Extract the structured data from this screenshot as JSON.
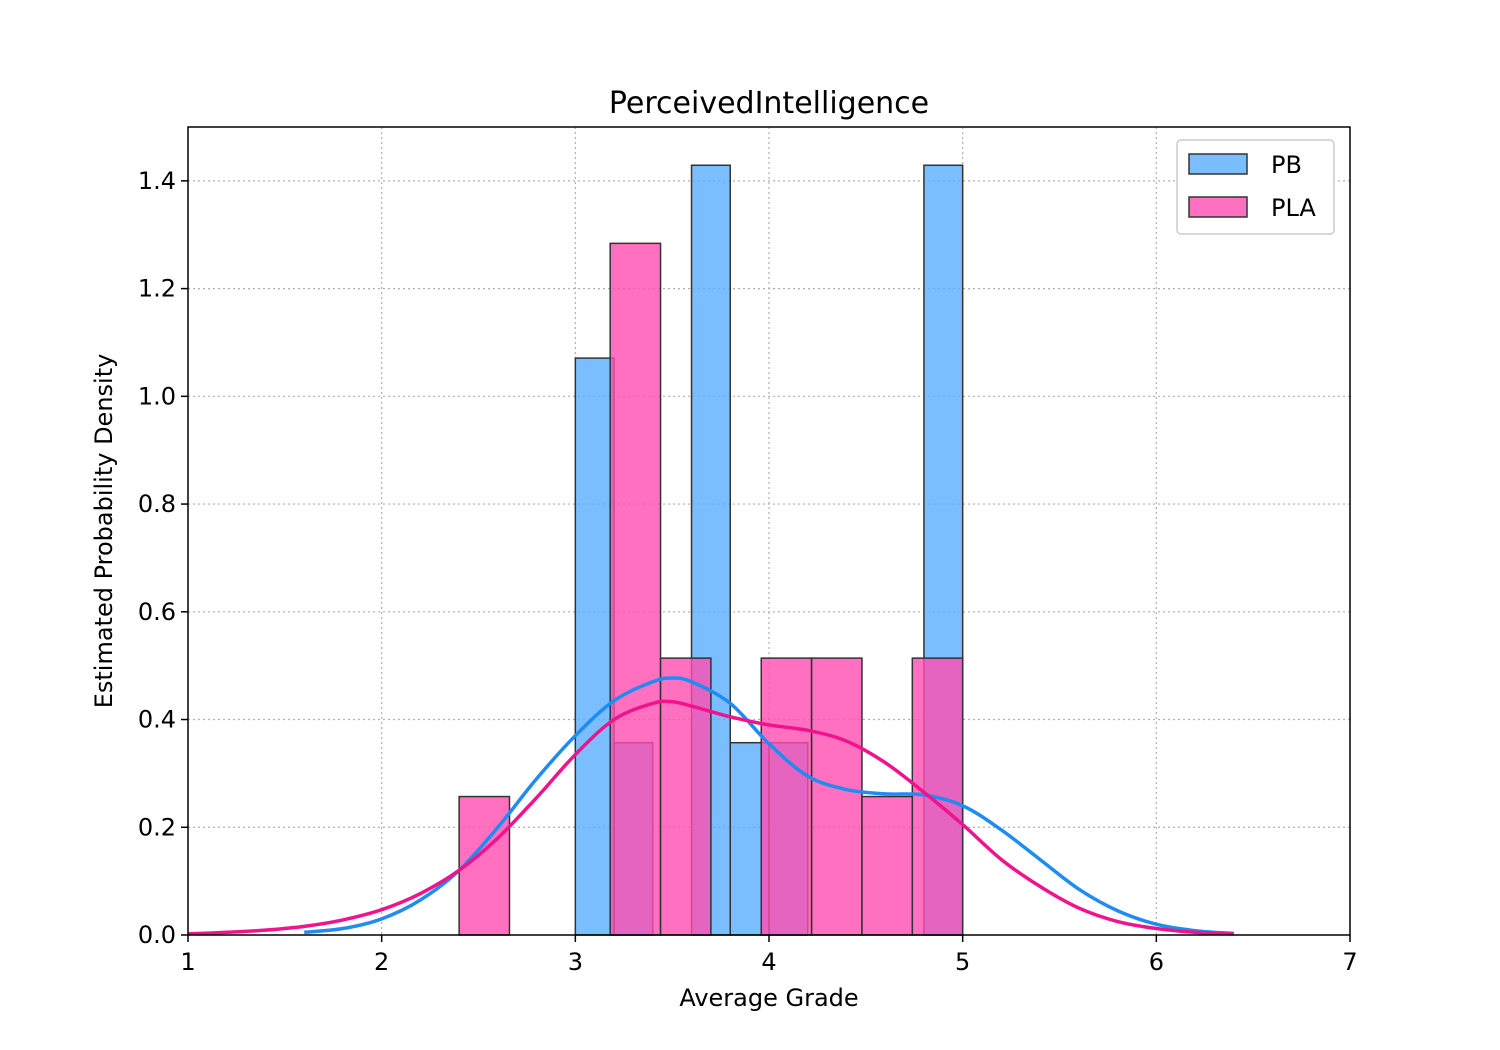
{
  "chart_data": {
    "type": "bar",
    "title": "PerceivedIntelligence",
    "xlabel": "Average Grade",
    "ylabel": "Estimated Probability Density",
    "xlim": [
      1,
      7
    ],
    "ylim": [
      0,
      1.5
    ],
    "xticks": [
      1,
      2,
      3,
      4,
      5,
      6,
      7
    ],
    "xtick_labels": [
      "1",
      "2",
      "3",
      "4",
      "5",
      "6",
      "7"
    ],
    "yticks": [
      0,
      0.2,
      0.4,
      0.6,
      0.8,
      1.0,
      1.2,
      1.4
    ],
    "ytick_labels": [
      "0.0",
      "0.2",
      "0.4",
      "0.6",
      "0.8",
      "1.0",
      "1.2",
      "1.4"
    ],
    "grid": true,
    "legend_position": "top-right",
    "series": [
      {
        "name": "PB",
        "color": "#5aaeff",
        "line_color": "#1e8cf0",
        "bins": [
          {
            "x0": 3.0,
            "x1": 3.2,
            "density": 1.071
          },
          {
            "x0": 3.2,
            "x1": 3.4,
            "density": 0.357
          },
          {
            "x0": 3.6,
            "x1": 3.8,
            "density": 1.429
          },
          {
            "x0": 3.8,
            "x1": 4.0,
            "density": 0.357
          },
          {
            "x0": 4.0,
            "x1": 4.2,
            "density": 0.357
          },
          {
            "x0": 4.8,
            "x1": 5.0,
            "density": 1.429
          }
        ],
        "kde": [
          [
            1.6,
            0.005
          ],
          [
            1.8,
            0.012
          ],
          [
            2.0,
            0.03
          ],
          [
            2.2,
            0.065
          ],
          [
            2.4,
            0.12
          ],
          [
            2.6,
            0.2
          ],
          [
            2.8,
            0.29
          ],
          [
            3.0,
            0.37
          ],
          [
            3.2,
            0.435
          ],
          [
            3.4,
            0.47
          ],
          [
            3.5,
            0.477
          ],
          [
            3.6,
            0.47
          ],
          [
            3.8,
            0.43
          ],
          [
            4.0,
            0.355
          ],
          [
            4.2,
            0.295
          ],
          [
            4.4,
            0.27
          ],
          [
            4.6,
            0.262
          ],
          [
            4.8,
            0.26
          ],
          [
            5.0,
            0.24
          ],
          [
            5.2,
            0.195
          ],
          [
            5.4,
            0.14
          ],
          [
            5.6,
            0.085
          ],
          [
            5.8,
            0.045
          ],
          [
            6.0,
            0.02
          ],
          [
            6.2,
            0.008
          ],
          [
            6.4,
            0.003
          ]
        ]
      },
      {
        "name": "PLA",
        "color": "#ff4db0",
        "line_color": "#f0148c",
        "bins": [
          {
            "x0": 2.4,
            "x1": 2.66,
            "density": 0.257
          },
          {
            "x0": 3.18,
            "x1": 3.44,
            "density": 1.284
          },
          {
            "x0": 3.44,
            "x1": 3.7,
            "density": 0.514
          },
          {
            "x0": 3.96,
            "x1": 4.22,
            "density": 0.514
          },
          {
            "x0": 4.22,
            "x1": 4.48,
            "density": 0.514
          },
          {
            "x0": 4.48,
            "x1": 4.74,
            "density": 0.257
          },
          {
            "x0": 4.74,
            "x1": 5.0,
            "density": 0.514
          }
        ],
        "kde": [
          [
            1.0,
            0.002
          ],
          [
            1.2,
            0.005
          ],
          [
            1.4,
            0.009
          ],
          [
            1.6,
            0.016
          ],
          [
            1.8,
            0.028
          ],
          [
            2.0,
            0.047
          ],
          [
            2.2,
            0.077
          ],
          [
            2.4,
            0.12
          ],
          [
            2.6,
            0.18
          ],
          [
            2.8,
            0.255
          ],
          [
            3.0,
            0.335
          ],
          [
            3.2,
            0.4
          ],
          [
            3.4,
            0.43
          ],
          [
            3.5,
            0.433
          ],
          [
            3.6,
            0.425
          ],
          [
            3.8,
            0.405
          ],
          [
            4.0,
            0.39
          ],
          [
            4.2,
            0.38
          ],
          [
            4.4,
            0.36
          ],
          [
            4.6,
            0.32
          ],
          [
            4.8,
            0.265
          ],
          [
            5.0,
            0.205
          ],
          [
            5.2,
            0.14
          ],
          [
            5.4,
            0.09
          ],
          [
            5.6,
            0.05
          ],
          [
            5.8,
            0.025
          ],
          [
            6.0,
            0.012
          ],
          [
            6.2,
            0.005
          ],
          [
            6.4,
            0.002
          ]
        ]
      }
    ]
  }
}
